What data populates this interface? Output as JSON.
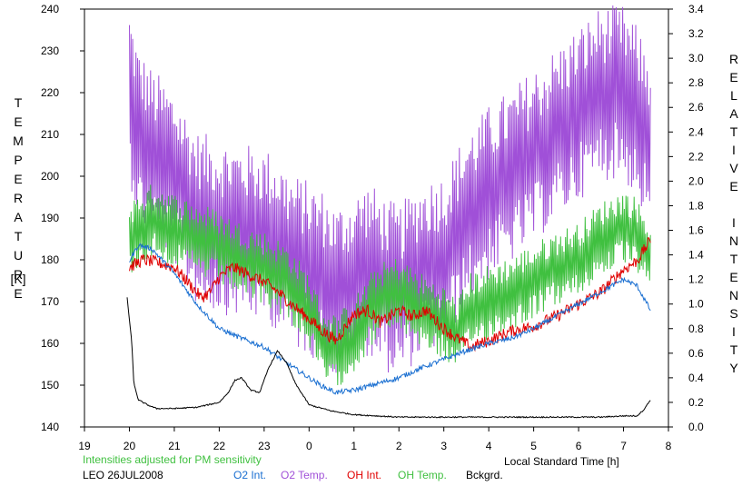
{
  "chart_data": {
    "type": "line",
    "title": "",
    "xlabel": "Local Standard Time [h]",
    "ylabel_left": "TEMPERATURE",
    "ylabel_left_unit": "[K]",
    "ylabel_right": "RELATIVE INTENSITY",
    "xlim": [
      19,
      32
    ],
    "ylim_left": [
      140,
      240
    ],
    "ylim_right": [
      0.0,
      3.4
    ],
    "x_ticks": [
      19,
      20,
      21,
      22,
      23,
      24,
      25,
      26,
      27,
      28,
      29,
      30,
      31,
      32
    ],
    "x_tick_labels": [
      "19",
      "20",
      "21",
      "22",
      "23",
      "0",
      "1",
      "2",
      "3",
      "4",
      "5",
      "6",
      "7",
      "8"
    ],
    "y_left_ticks": [
      140,
      150,
      160,
      170,
      180,
      190,
      200,
      210,
      220,
      230,
      240
    ],
    "y_right_ticks": [
      "0.0",
      "0.2",
      "0.4",
      "0.6",
      "0.8",
      "1.0",
      "1.2",
      "1.4",
      "1.6",
      "1.8",
      "2.0",
      "2.2",
      "2.4",
      "2.6",
      "2.8",
      "3.0",
      "3.2",
      "3.4"
    ],
    "grid": false,
    "note": "Intensities adjusted for PM sensitivity",
    "station": "LEO 26JUL2008",
    "legend": [
      {
        "label": "O2 Int.",
        "color": "#1a6fd1"
      },
      {
        "label": "O2 Temp.",
        "color": "#a050d8"
      },
      {
        "label": "OH Int.",
        "color": "#e00000"
      },
      {
        "label": "OH Temp.",
        "color": "#40c040"
      },
      {
        "label": "Bckgrd.",
        "color": "#000000"
      }
    ],
    "series": [
      {
        "key": "o2_temp",
        "axis": "left",
        "color": "#a050d8",
        "noise": 14,
        "x": [
          20.0,
          20.2,
          20.5,
          21.0,
          21.5,
          22.0,
          22.5,
          23.0,
          23.3,
          23.6,
          24.0,
          24.3,
          24.6,
          25.0,
          25.3,
          25.6,
          26.0,
          26.5,
          27.0,
          27.5,
          28.0,
          28.5,
          29.0,
          29.5,
          30.0,
          30.5,
          31.0,
          31.3,
          31.6
        ],
        "y": [
          220,
          210,
          205,
          200,
          190,
          188,
          187,
          186,
          184,
          180,
          178,
          176,
          172,
          175,
          178,
          175,
          172,
          178,
          180,
          190,
          196,
          200,
          205,
          210,
          215,
          220,
          220,
          215,
          208
        ]
      },
      {
        "key": "oh_temp",
        "axis": "left",
        "color": "#40c040",
        "noise": 6,
        "x": [
          20.0,
          20.3,
          20.6,
          21.0,
          21.5,
          22.0,
          22.5,
          23.0,
          23.5,
          24.0,
          24.3,
          24.6,
          25.0,
          25.5,
          26.0,
          26.5,
          27.0,
          27.3,
          27.6,
          28.0,
          28.5,
          29.0,
          29.5,
          30.0,
          30.5,
          31.0,
          31.3,
          31.6
        ],
        "y": [
          185,
          188,
          190,
          187,
          185,
          183,
          180,
          178,
          175,
          168,
          160,
          158,
          162,
          170,
          172,
          168,
          165,
          162,
          168,
          170,
          172,
          175,
          178,
          180,
          185,
          188,
          186,
          180
        ]
      },
      {
        "key": "oh_int",
        "axis": "right",
        "color": "#e00000",
        "noise": 0.05,
        "x": [
          20.0,
          20.3,
          20.6,
          21.0,
          21.3,
          21.6,
          21.8,
          22.0,
          22.3,
          22.6,
          23.0,
          23.3,
          23.6,
          24.0,
          24.3,
          24.6,
          25.0,
          25.3,
          25.6,
          26.0,
          26.3,
          26.6,
          27.0,
          27.3,
          27.6,
          28.0,
          28.5,
          29.0,
          29.5,
          30.0,
          30.5,
          31.0,
          31.3,
          31.6
        ],
        "y": [
          1.3,
          1.36,
          1.34,
          1.3,
          1.18,
          1.05,
          1.1,
          1.22,
          1.3,
          1.25,
          1.18,
          1.1,
          1.0,
          0.88,
          0.78,
          0.7,
          0.92,
          0.95,
          0.85,
          0.95,
          0.9,
          0.95,
          0.8,
          0.72,
          0.65,
          0.7,
          0.78,
          0.82,
          0.9,
          1.0,
          1.1,
          1.28,
          1.35,
          1.52
        ]
      },
      {
        "key": "o2_int",
        "axis": "right",
        "color": "#1a6fd1",
        "noise": 0.02,
        "x": [
          20.0,
          20.2,
          20.5,
          21.0,
          21.5,
          22.0,
          22.5,
          23.0,
          23.5,
          24.0,
          24.3,
          24.6,
          25.0,
          25.5,
          26.0,
          26.5,
          27.0,
          27.5,
          28.0,
          28.5,
          29.0,
          29.5,
          30.0,
          30.5,
          31.0,
          31.3,
          31.6
        ],
        "y": [
          1.35,
          1.48,
          1.45,
          1.25,
          1.0,
          0.8,
          0.72,
          0.65,
          0.52,
          0.4,
          0.33,
          0.28,
          0.3,
          0.35,
          0.4,
          0.48,
          0.55,
          0.62,
          0.68,
          0.72,
          0.8,
          0.9,
          1.0,
          1.1,
          1.2,
          1.15,
          0.95
        ]
      },
      {
        "key": "bckgrd",
        "axis": "right",
        "color": "#000000",
        "noise": 0.005,
        "x": [
          19.95,
          20.05,
          20.1,
          20.2,
          20.4,
          20.6,
          21.0,
          21.5,
          22.0,
          22.2,
          22.35,
          22.5,
          22.7,
          22.9,
          23.1,
          23.3,
          23.5,
          23.7,
          24.0,
          24.5,
          25.0,
          26.0,
          27.0,
          28.0,
          29.0,
          30.0,
          30.5,
          31.0,
          31.3,
          31.45,
          31.6
        ],
        "y": [
          1.05,
          0.7,
          0.35,
          0.22,
          0.18,
          0.15,
          0.15,
          0.16,
          0.2,
          0.28,
          0.38,
          0.4,
          0.3,
          0.28,
          0.48,
          0.62,
          0.52,
          0.35,
          0.18,
          0.13,
          0.1,
          0.08,
          0.08,
          0.08,
          0.08,
          0.08,
          0.08,
          0.09,
          0.09,
          0.14,
          0.22
        ]
      }
    ]
  }
}
